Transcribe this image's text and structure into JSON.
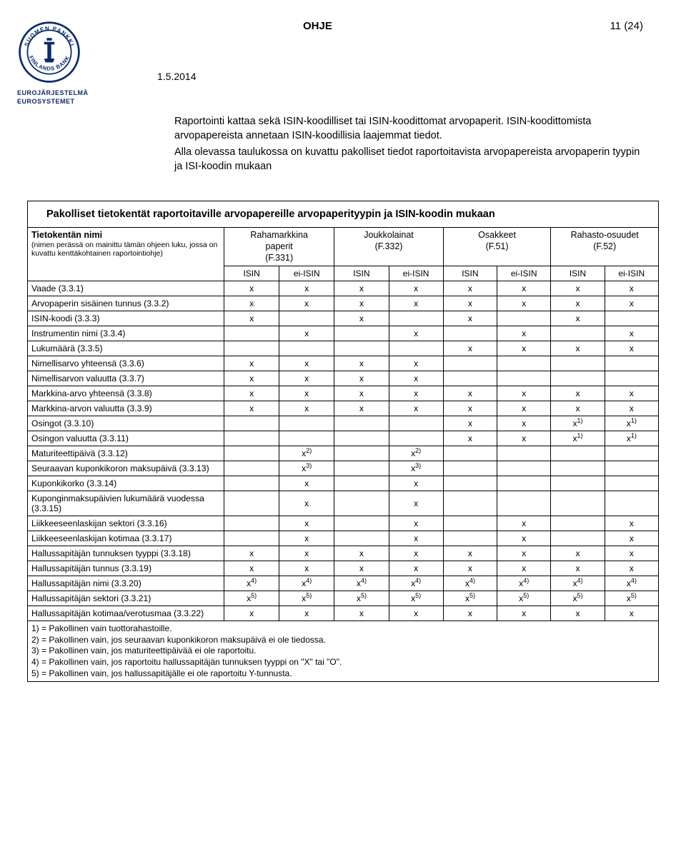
{
  "header": {
    "doc_type": "OHJE",
    "page_number": "11 (24)",
    "date": "1.5.2014",
    "logo_sub1": "EUROJÄRJESTELMÄ",
    "logo_sub2": "EUROSYSTEMET"
  },
  "intro": {
    "p1": "Raportointi kattaa sekä ISIN-koodilliset tai ISIN-koodittomat arvopaperit. ISIN-koodittomista arvopapereista annetaan ISIN-koodillisia laajemmat tiedot.",
    "p2": "Alla olevassa taulukossa on kuvattu pakolliset tiedot raportoitavista arvopapereista arvopaperin tyypin ja ISI-koodin mukaan"
  },
  "table": {
    "title": "Pakolliset tietokentät raportoitaville arvopapereille arvopaperityypin ja ISIN-koodin mukaan",
    "rowhead_title": "Tietokentän nimi",
    "rowhead_sub": "(nimen perässä on mainittu tämän ohjeen luku, jossa on kuvattu kenttäkohtainen raportointiohje)",
    "groups": [
      {
        "label": "Rahamarkkina\npaperit\n(F.331)"
      },
      {
        "label": "Joukkolainat\n(F.332)"
      },
      {
        "label": "Osakkeet\n(F.51)"
      },
      {
        "label": "Rahasto-osuudet\n(F.52)"
      }
    ],
    "subcols": [
      "ISIN",
      "ei-ISIN",
      "ISIN",
      "ei-ISIN",
      "ISIN",
      "ei-ISIN",
      "ISIN",
      "ei-ISIN"
    ],
    "rows": [
      {
        "label": "Vaade (3.3.1)",
        "cells": [
          "x",
          "x",
          "x",
          "x",
          "x",
          "x",
          "x",
          "x"
        ]
      },
      {
        "label": "Arvopaperin sisäinen tunnus (3.3.2)",
        "cells": [
          "x",
          "x",
          "x",
          "x",
          "x",
          "x",
          "x",
          "x"
        ]
      },
      {
        "label": "ISIN-koodi (3.3.3)",
        "cells": [
          "x",
          "",
          "x",
          "",
          "x",
          "",
          "x",
          ""
        ]
      },
      {
        "label": "Instrumentin nimi  (3.3.4)",
        "cells": [
          "",
          "x",
          "",
          "x",
          "",
          "x",
          "",
          "x"
        ]
      },
      {
        "label": "Lukumäärä (3.3.5)",
        "cells": [
          "",
          "",
          "",
          "",
          "x",
          "x",
          "x",
          "x"
        ]
      },
      {
        "label": "Nimellisarvo yhteensä (3.3.6)",
        "cells": [
          "x",
          "x",
          "x",
          "x",
          "",
          "",
          "",
          ""
        ]
      },
      {
        "label": "Nimellisarvon valuutta (3.3.7)",
        "cells": [
          "x",
          "x",
          "x",
          "x",
          "",
          "",
          "",
          ""
        ]
      },
      {
        "label": "Markkina-arvo yhteensä (3.3.8)",
        "cells": [
          "x",
          "x",
          "x",
          "x",
          "x",
          "x",
          "x",
          "x"
        ]
      },
      {
        "label": "Markkina-arvon valuutta (3.3.9)",
        "cells": [
          "x",
          "x",
          "x",
          "x",
          "x",
          "x",
          "x",
          "x"
        ]
      },
      {
        "label": "Osingot (3.3.10)",
        "cells": [
          "",
          "",
          "",
          "",
          "x",
          "x",
          "x<sup>1)</sup>",
          "x<sup>1)</sup>"
        ]
      },
      {
        "label": "Osingon valuutta (3.3.11)",
        "cells": [
          "",
          "",
          "",
          "",
          "x",
          "x",
          "x<sup>1)</sup>",
          "x<sup>1)</sup>"
        ]
      },
      {
        "label": "Maturiteettipäivä (3.3.12)",
        "cells": [
          "",
          "x<sup>2)</sup>",
          "",
          "x<sup>2)</sup>",
          "",
          "",
          "",
          ""
        ]
      },
      {
        "label": "Seuraavan kuponkikoron maksupäivä (3.3.13)",
        "cells": [
          "",
          "x<sup>3)</sup>",
          "",
          "x<sup>3)</sup>",
          "",
          "",
          "",
          ""
        ]
      },
      {
        "label": "Kuponkikorko (3.3.14)",
        "cells": [
          "",
          "x",
          "",
          "x",
          "",
          "",
          "",
          ""
        ]
      },
      {
        "label": "Kuponginmaksupäivien lukumäärä vuodessa (3.3.15)",
        "cells": [
          "",
          "x",
          "",
          "x",
          "",
          "",
          "",
          ""
        ]
      },
      {
        "label": "Liikkeeseenlaskijan sektori (3.3.16)",
        "cells": [
          "",
          "x",
          "",
          "x",
          "",
          "x",
          "",
          "x"
        ]
      },
      {
        "label": "Liikkeeseenlaskijan kotimaa (3.3.17)",
        "cells": [
          "",
          "x",
          "",
          "x",
          "",
          "x",
          "",
          "x"
        ]
      },
      {
        "label": "Hallussapitäjän tunnuksen tyyppi (3.3.18)",
        "cells": [
          "x",
          "x",
          "x",
          "x",
          "x",
          "x",
          "x",
          "x"
        ]
      },
      {
        "label": "Hallussapitäjän tunnus (3.3.19)",
        "cells": [
          "x",
          "x",
          "x",
          "x",
          "x",
          "x",
          "x",
          "x"
        ]
      },
      {
        "label": "Hallussapitäjän nimi (3.3.20)",
        "cells": [
          "x<sup>4)</sup>",
          "x<sup>4)</sup>",
          "x<sup>4)</sup>",
          "x<sup>4)</sup>",
          "x<sup>4)</sup>",
          "x<sup>4)</sup>",
          "x<sup>4)</sup>",
          "x<sup>4)</sup>"
        ]
      },
      {
        "label": "Hallussapitäjän sektori (3.3.21)",
        "cells": [
          "x<sup>5)</sup>",
          "x<sup>5)</sup>",
          "x<sup>5)</sup>",
          "x<sup>5)</sup>",
          "x<sup>5)</sup>",
          "x<sup>5)</sup>",
          "x<sup>5)</sup>",
          "x<sup>5)</sup>"
        ]
      },
      {
        "label": "Hallussapitäjän kotimaa/verotusmaa (3.3.22)",
        "cells": [
          "x",
          "x",
          "x",
          "x",
          "x",
          "x",
          "x",
          "x"
        ]
      }
    ],
    "footnotes": [
      "1) = Pakollinen vain tuottorahastoille.",
      "2) = Pakollinen vain, jos seuraavan kuponkikoron maksupäivä ei ole tiedossa.",
      "3) = Pakollinen vain, jos maturiteettipäivää ei ole raportoitu.",
      "4) = Pakollinen vain, jos raportoitu hallussapitäjän tunnuksen tyyppi on \"X\" tai \"O\".",
      "5) = Pakollinen vain, jos hallussapitäjälle ei ole raportoitu Y-tunnusta."
    ]
  }
}
